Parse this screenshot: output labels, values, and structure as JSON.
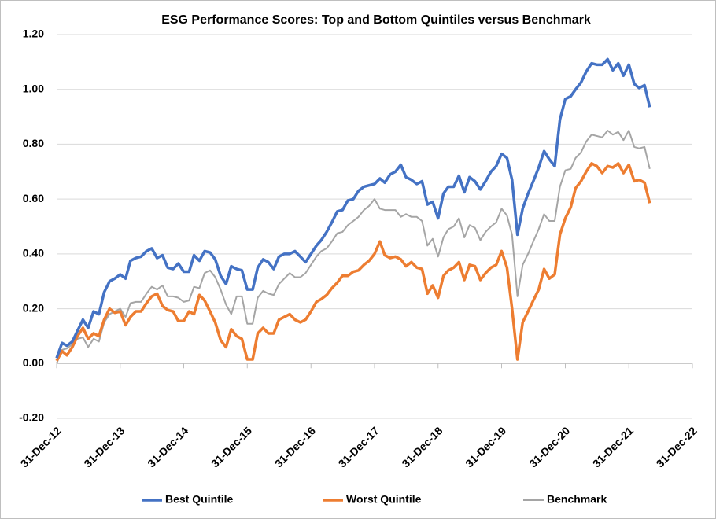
{
  "chart_data": {
    "type": "line",
    "title": "ESG Performance Scores: Top and Bottom Quintiles versus Benchmark",
    "x": [
      "2012-12-31",
      "2013-01-31",
      "2013-02-28",
      "2013-03-31",
      "2013-04-30",
      "2013-05-31",
      "2013-06-30",
      "2013-07-31",
      "2013-08-31",
      "2013-09-30",
      "2013-10-31",
      "2013-11-30",
      "2013-12-31",
      "2014-01-31",
      "2014-02-28",
      "2014-03-31",
      "2014-04-30",
      "2014-05-31",
      "2014-06-30",
      "2014-07-31",
      "2014-08-31",
      "2014-09-30",
      "2014-10-31",
      "2014-11-30",
      "2014-12-31",
      "2015-01-31",
      "2015-02-28",
      "2015-03-31",
      "2015-04-30",
      "2015-05-31",
      "2015-06-30",
      "2015-07-31",
      "2015-08-31",
      "2015-09-30",
      "2015-10-31",
      "2015-11-30",
      "2015-12-31",
      "2016-01-31",
      "2016-02-29",
      "2016-03-31",
      "2016-04-30",
      "2016-05-31",
      "2016-06-30",
      "2016-07-31",
      "2016-08-31",
      "2016-09-30",
      "2016-10-31",
      "2016-11-30",
      "2016-12-31",
      "2017-01-31",
      "2017-02-28",
      "2017-03-31",
      "2017-04-30",
      "2017-05-31",
      "2017-06-30",
      "2017-07-31",
      "2017-08-31",
      "2017-09-30",
      "2017-10-31",
      "2017-11-30",
      "2017-12-31",
      "2018-01-31",
      "2018-02-28",
      "2018-03-31",
      "2018-04-30",
      "2018-05-31",
      "2018-06-30",
      "2018-07-31",
      "2018-08-31",
      "2018-09-30",
      "2018-10-31",
      "2018-11-30",
      "2018-12-31",
      "2019-01-31",
      "2019-02-28",
      "2019-03-31",
      "2019-04-30",
      "2019-05-31",
      "2019-06-30",
      "2019-07-31",
      "2019-08-31",
      "2019-09-30",
      "2019-10-31",
      "2019-11-30",
      "2019-12-31",
      "2020-01-31",
      "2020-02-29",
      "2020-03-31",
      "2020-04-30",
      "2020-05-31",
      "2020-06-30",
      "2020-07-31",
      "2020-08-31",
      "2020-09-30",
      "2020-10-31",
      "2020-11-30",
      "2020-12-31",
      "2021-01-31",
      "2021-02-28",
      "2021-03-31",
      "2021-04-30",
      "2021-05-31",
      "2021-06-30",
      "2021-07-31",
      "2021-08-31",
      "2021-09-30",
      "2021-10-31",
      "2021-11-30",
      "2021-12-31",
      "2022-01-31",
      "2022-02-28",
      "2022-03-31",
      "2022-04-30"
    ],
    "series": [
      {
        "name": "Best Quintile",
        "color": "#4472c4",
        "values": [
          0.02,
          0.075,
          0.065,
          0.08,
          0.12,
          0.16,
          0.13,
          0.19,
          0.18,
          0.26,
          0.3,
          0.31,
          0.325,
          0.31,
          0.375,
          0.385,
          0.39,
          0.41,
          0.42,
          0.385,
          0.395,
          0.35,
          0.345,
          0.365,
          0.335,
          0.335,
          0.395,
          0.375,
          0.41,
          0.405,
          0.38,
          0.32,
          0.29,
          0.355,
          0.345,
          0.34,
          0.27,
          0.27,
          0.35,
          0.38,
          0.37,
          0.345,
          0.39,
          0.4,
          0.4,
          0.41,
          0.39,
          0.37,
          0.4,
          0.43,
          0.45,
          0.48,
          0.515,
          0.555,
          0.56,
          0.595,
          0.6,
          0.63,
          0.645,
          0.65,
          0.655,
          0.675,
          0.66,
          0.69,
          0.7,
          0.725,
          0.68,
          0.67,
          0.655,
          0.665,
          0.58,
          0.59,
          0.53,
          0.62,
          0.645,
          0.645,
          0.685,
          0.625,
          0.68,
          0.665,
          0.635,
          0.665,
          0.7,
          0.72,
          0.765,
          0.75,
          0.67,
          0.47,
          0.565,
          0.62,
          0.665,
          0.715,
          0.775,
          0.745,
          0.72,
          0.89,
          0.965,
          0.975,
          1.0,
          1.025,
          1.065,
          1.095,
          1.09,
          1.09,
          1.11,
          1.07,
          1.095,
          1.05,
          1.09,
          1.02,
          1.005,
          1.015,
          0.935
        ]
      },
      {
        "name": "Worst Quintile",
        "color": "#ed7d31",
        "values": [
          0.01,
          0.045,
          0.03,
          0.06,
          0.1,
          0.13,
          0.09,
          0.11,
          0.1,
          0.16,
          0.2,
          0.185,
          0.19,
          0.14,
          0.17,
          0.19,
          0.19,
          0.22,
          0.245,
          0.255,
          0.21,
          0.195,
          0.19,
          0.155,
          0.155,
          0.19,
          0.18,
          0.25,
          0.23,
          0.19,
          0.15,
          0.085,
          0.06,
          0.125,
          0.1,
          0.09,
          0.015,
          0.015,
          0.11,
          0.13,
          0.11,
          0.11,
          0.16,
          0.17,
          0.18,
          0.16,
          0.15,
          0.16,
          0.19,
          0.225,
          0.235,
          0.25,
          0.275,
          0.295,
          0.32,
          0.32,
          0.335,
          0.34,
          0.36,
          0.375,
          0.4,
          0.445,
          0.395,
          0.385,
          0.39,
          0.38,
          0.355,
          0.37,
          0.35,
          0.345,
          0.255,
          0.285,
          0.24,
          0.32,
          0.34,
          0.35,
          0.37,
          0.305,
          0.36,
          0.355,
          0.305,
          0.33,
          0.35,
          0.36,
          0.41,
          0.35,
          0.2,
          0.015,
          0.15,
          0.19,
          0.23,
          0.27,
          0.345,
          0.31,
          0.325,
          0.47,
          0.53,
          0.57,
          0.64,
          0.665,
          0.7,
          0.73,
          0.72,
          0.695,
          0.72,
          0.715,
          0.73,
          0.695,
          0.725,
          0.665,
          0.67,
          0.66,
          0.585
        ]
      },
      {
        "name": "Benchmark",
        "color": "#a5a5a5",
        "values": [
          0.0,
          0.05,
          0.055,
          0.07,
          0.09,
          0.095,
          0.06,
          0.09,
          0.08,
          0.15,
          0.18,
          0.19,
          0.2,
          0.17,
          0.22,
          0.225,
          0.225,
          0.255,
          0.28,
          0.27,
          0.285,
          0.245,
          0.245,
          0.24,
          0.225,
          0.23,
          0.28,
          0.275,
          0.33,
          0.34,
          0.315,
          0.27,
          0.215,
          0.18,
          0.245,
          0.245,
          0.145,
          0.145,
          0.24,
          0.265,
          0.255,
          0.25,
          0.29,
          0.31,
          0.33,
          0.315,
          0.315,
          0.33,
          0.36,
          0.39,
          0.41,
          0.42,
          0.445,
          0.475,
          0.48,
          0.505,
          0.52,
          0.535,
          0.56,
          0.575,
          0.6,
          0.565,
          0.56,
          0.56,
          0.56,
          0.535,
          0.545,
          0.535,
          0.535,
          0.52,
          0.43,
          0.455,
          0.39,
          0.46,
          0.49,
          0.5,
          0.53,
          0.46,
          0.505,
          0.495,
          0.45,
          0.48,
          0.5,
          0.515,
          0.565,
          0.54,
          0.47,
          0.245,
          0.36,
          0.4,
          0.445,
          0.49,
          0.545,
          0.52,
          0.52,
          0.645,
          0.705,
          0.71,
          0.75,
          0.77,
          0.81,
          0.835,
          0.83,
          0.825,
          0.85,
          0.835,
          0.845,
          0.815,
          0.85,
          0.79,
          0.785,
          0.79,
          0.71
        ]
      }
    ],
    "xlim": [
      "2012-12-31",
      "2022-12-31"
    ],
    "xticks": [
      {
        "value": "2012-12-31",
        "label": "31-Dec-12"
      },
      {
        "value": "2013-12-31",
        "label": "31-Dec-13"
      },
      {
        "value": "2014-12-31",
        "label": "31-Dec-14"
      },
      {
        "value": "2015-12-31",
        "label": "31-Dec-15"
      },
      {
        "value": "2016-12-31",
        "label": "31-Dec-16"
      },
      {
        "value": "2017-12-31",
        "label": "31-Dec-17"
      },
      {
        "value": "2018-12-31",
        "label": "31-Dec-18"
      },
      {
        "value": "2019-12-31",
        "label": "31-Dec-19"
      },
      {
        "value": "2020-12-31",
        "label": "31-Dec-20"
      },
      {
        "value": "2021-12-31",
        "label": "31-Dec-21"
      },
      {
        "value": "2022-12-31",
        "label": "31-Dec-22"
      }
    ],
    "ylim": [
      -0.2,
      1.2
    ],
    "yticks": [
      {
        "value": -0.2,
        "label": "-0.20"
      },
      {
        "value": 0,
        "label": "0.00"
      },
      {
        "value": 0.2,
        "label": "0.20"
      },
      {
        "value": 0.4,
        "label": "0.40"
      },
      {
        "value": 0.6,
        "label": "0.60"
      },
      {
        "value": 0.8,
        "label": "0.80"
      },
      {
        "value": 1.0,
        "label": "1.00"
      },
      {
        "value": 1.2,
        "label": "1.20"
      }
    ],
    "grid": true,
    "legend": "bottom"
  }
}
